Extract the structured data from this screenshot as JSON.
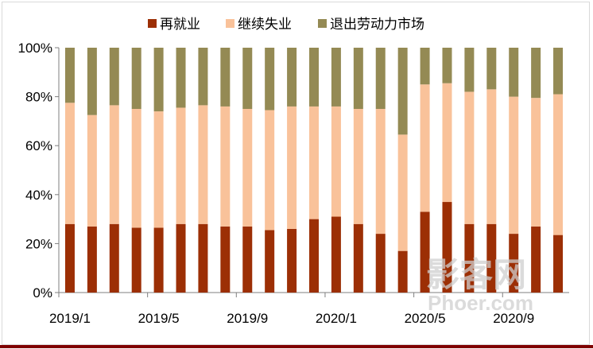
{
  "chart_data": {
    "type": "bar",
    "stacked": true,
    "title": "",
    "xlabel": "",
    "ylabel": "",
    "ylim": [
      0,
      100
    ],
    "y_ticks": [
      "0%",
      "20%",
      "40%",
      "60%",
      "80%",
      "100%"
    ],
    "categories": [
      "2019/1",
      "2019/2",
      "2019/3",
      "2019/4",
      "2019/5",
      "2019/6",
      "2019/7",
      "2019/8",
      "2019/9",
      "2019/10",
      "2019/11",
      "2019/12",
      "2020/1",
      "2020/2",
      "2020/3",
      "2020/4",
      "2020/5",
      "2020/6",
      "2020/7",
      "2020/8",
      "2020/9",
      "2020/10",
      "2020/11"
    ],
    "x_tick_labels": [
      "2019/1",
      "2019/5",
      "2019/9",
      "2020/1",
      "2020/5",
      "2020/9"
    ],
    "legend_position": "top",
    "series": [
      {
        "name": "再就业",
        "color": "#9c2f05",
        "values": [
          28,
          27,
          28,
          26.5,
          26.5,
          28,
          28,
          27,
          27,
          25.5,
          26,
          30,
          31,
          28,
          24,
          17,
          33,
          37,
          28,
          28,
          24,
          27,
          23.5
        ]
      },
      {
        "name": "继续失业",
        "color": "#f9c29a",
        "values": [
          49.5,
          45.5,
          48.5,
          48.5,
          47.5,
          47.5,
          48.5,
          49,
          48,
          49,
          50,
          46,
          45,
          47,
          51,
          47.5,
          52,
          48.5,
          54,
          55,
          56,
          52.5,
          57.5
        ]
      },
      {
        "name": "退出劳动力市场",
        "color": "#948a54",
        "values": [
          22.5,
          27.5,
          23.5,
          25,
          26,
          24.5,
          23.5,
          24,
          25,
          25.5,
          24,
          24,
          24,
          25,
          25,
          35.5,
          15,
          14.5,
          18,
          17,
          20,
          20.5,
          19
        ]
      }
    ]
  },
  "watermark": {
    "main": "影客网",
    "sub": "Phoer.com"
  }
}
